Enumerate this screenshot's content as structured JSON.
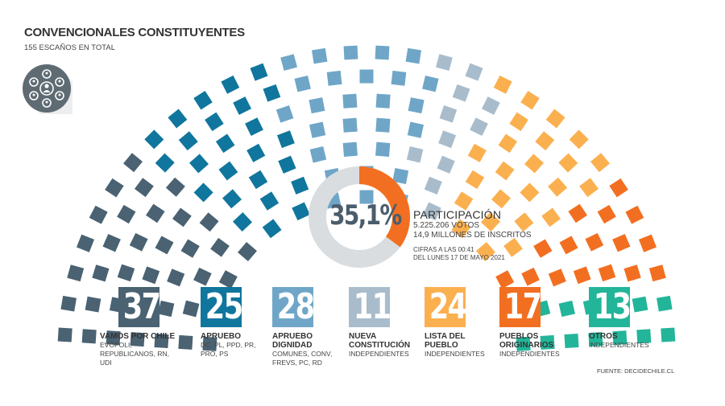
{
  "title": "CONVENCIONALES CONSTITUYENTES",
  "subtitle": "155  ESCAÑOS EN TOTAL",
  "logo_icon": "people-circle-icon",
  "participation": {
    "value": "35,1%",
    "percent": 35.1,
    "label": "PARTICIPACIÓN",
    "votes": "5.225.206 VOTOS",
    "registered": "14,9 MILLONES DE INSCRITOS",
    "time_note_1": "CIFRAS A LAS 00:41",
    "time_note_2": "DEL LUNES 17 DE MAYO 2021",
    "color_filled": "#f26f21",
    "color_empty": "#d9dde0"
  },
  "parties": [
    {
      "count": "37",
      "name": "VAMOS POR CHILE",
      "parties": "EVÓPOLI,\nREPUBLICANOS, RN,\nUDI",
      "color": "#4a6272"
    },
    {
      "count": "25",
      "name": "APRUEBO",
      "parties": "DC, PL, PPD, PR,\nPRO, PS",
      "color": "#10769d"
    },
    {
      "count": "28",
      "name": "APRUEBO\nDIGNIDAD",
      "parties": "COMUNES, CONV,\nFREVS, PC, RD",
      "color": "#6fa6c8"
    },
    {
      "count": "11",
      "name": "NUEVA\nCONSTITUCIÓN",
      "parties": "INDEPENDIENTES",
      "color": "#a9bccb"
    },
    {
      "count": "24",
      "name": "LISTA DEL\nPUEBLO",
      "parties": "INDEPENDIENTES",
      "color": "#fbb04f"
    },
    {
      "count": "17",
      "name": "PUEBLOS\nORIGINARIOS",
      "parties": "INDEPENDIENTES",
      "color": "#f26f21"
    },
    {
      "count": "13",
      "name": "OTROS",
      "parties": "INDEPENDIENTES",
      "color": "#23b59a"
    }
  ],
  "source": "FUENTE: DECIDECHILE.CL",
  "chart_data": {
    "type": "hemicycle",
    "total_seats": 155,
    "categories": [
      "VAMOS POR CHILE",
      "APRUEBO",
      "APRUEBO DIGNIDAD",
      "NUEVA CONSTITUCIÓN",
      "LISTA DEL PUEBLO",
      "PUEBLOS ORIGINARIOS",
      "OTROS"
    ],
    "values": [
      37,
      25,
      28,
      11,
      24,
      17,
      13
    ],
    "colors": [
      "#4a6272",
      "#10769d",
      "#6fa6c8",
      "#a9bccb",
      "#fbb04f",
      "#f26f21",
      "#23b59a"
    ]
  }
}
